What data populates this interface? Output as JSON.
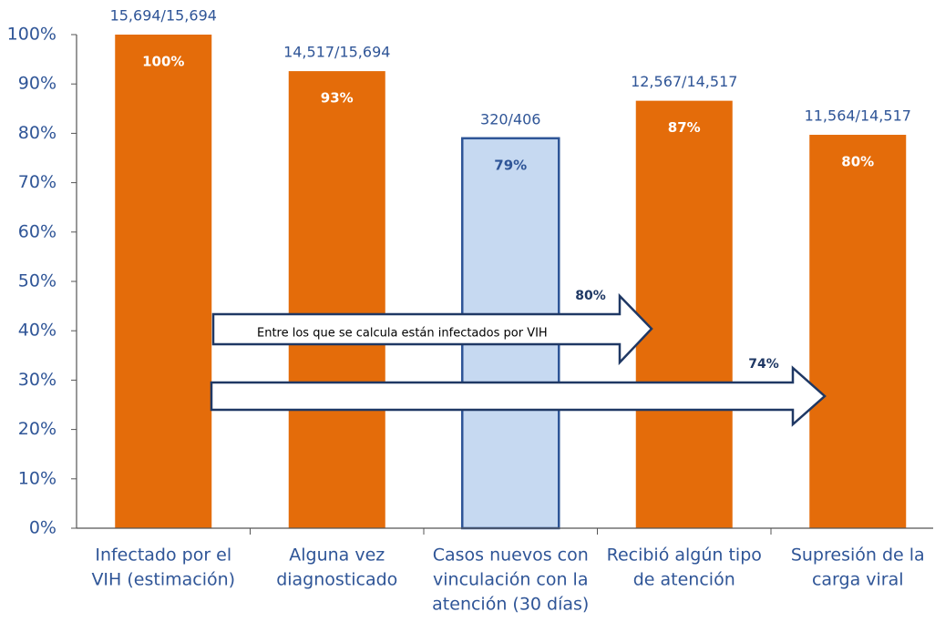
{
  "chart_data": {
    "type": "bar",
    "categories": [
      [
        "Infectado por el",
        "VIH (estimación)"
      ],
      [
        "Alguna vez",
        "diagnosticado"
      ],
      [
        "Casos nuevos con",
        "vinculación con la",
        "atención (30 días)"
      ],
      [
        "Recibió algún tipo",
        "de atención"
      ],
      [
        "Supresión de la",
        "carga viral"
      ]
    ],
    "values": [
      100,
      92.6,
      79,
      86.6,
      79.7
    ],
    "value_labels": [
      "100%",
      "93%",
      "79%",
      "87%",
      "80%"
    ],
    "counts": [
      "15,694/15,694",
      "14,517/15,694",
      "320/406",
      "12,567/14,517",
      "11,564/14,517"
    ],
    "colors": [
      "#e46c0a",
      "#e46c0a",
      "#c6d9f1",
      "#e46c0a",
      "#e46c0a"
    ],
    "ylim": [
      0,
      100
    ],
    "yticks": [
      {
        "value": 0,
        "label": "0%"
      },
      {
        "value": 10,
        "label": "10%"
      },
      {
        "value": 20,
        "label": "20%"
      },
      {
        "value": 30,
        "label": "30%"
      },
      {
        "value": 40,
        "label": "40%"
      },
      {
        "value": 50,
        "label": "50%"
      },
      {
        "value": 60,
        "label": "60%"
      },
      {
        "value": 70,
        "label": "70%"
      },
      {
        "value": 80,
        "label": "80%"
      },
      {
        "value": 90,
        "label": "90%"
      },
      {
        "value": 100,
        "label": "100%"
      }
    ],
    "grid": false,
    "arrows": [
      {
        "label": "80%",
        "text": "Entre los que se calcula están infectados por VIH"
      },
      {
        "label": "74%"
      }
    ]
  }
}
